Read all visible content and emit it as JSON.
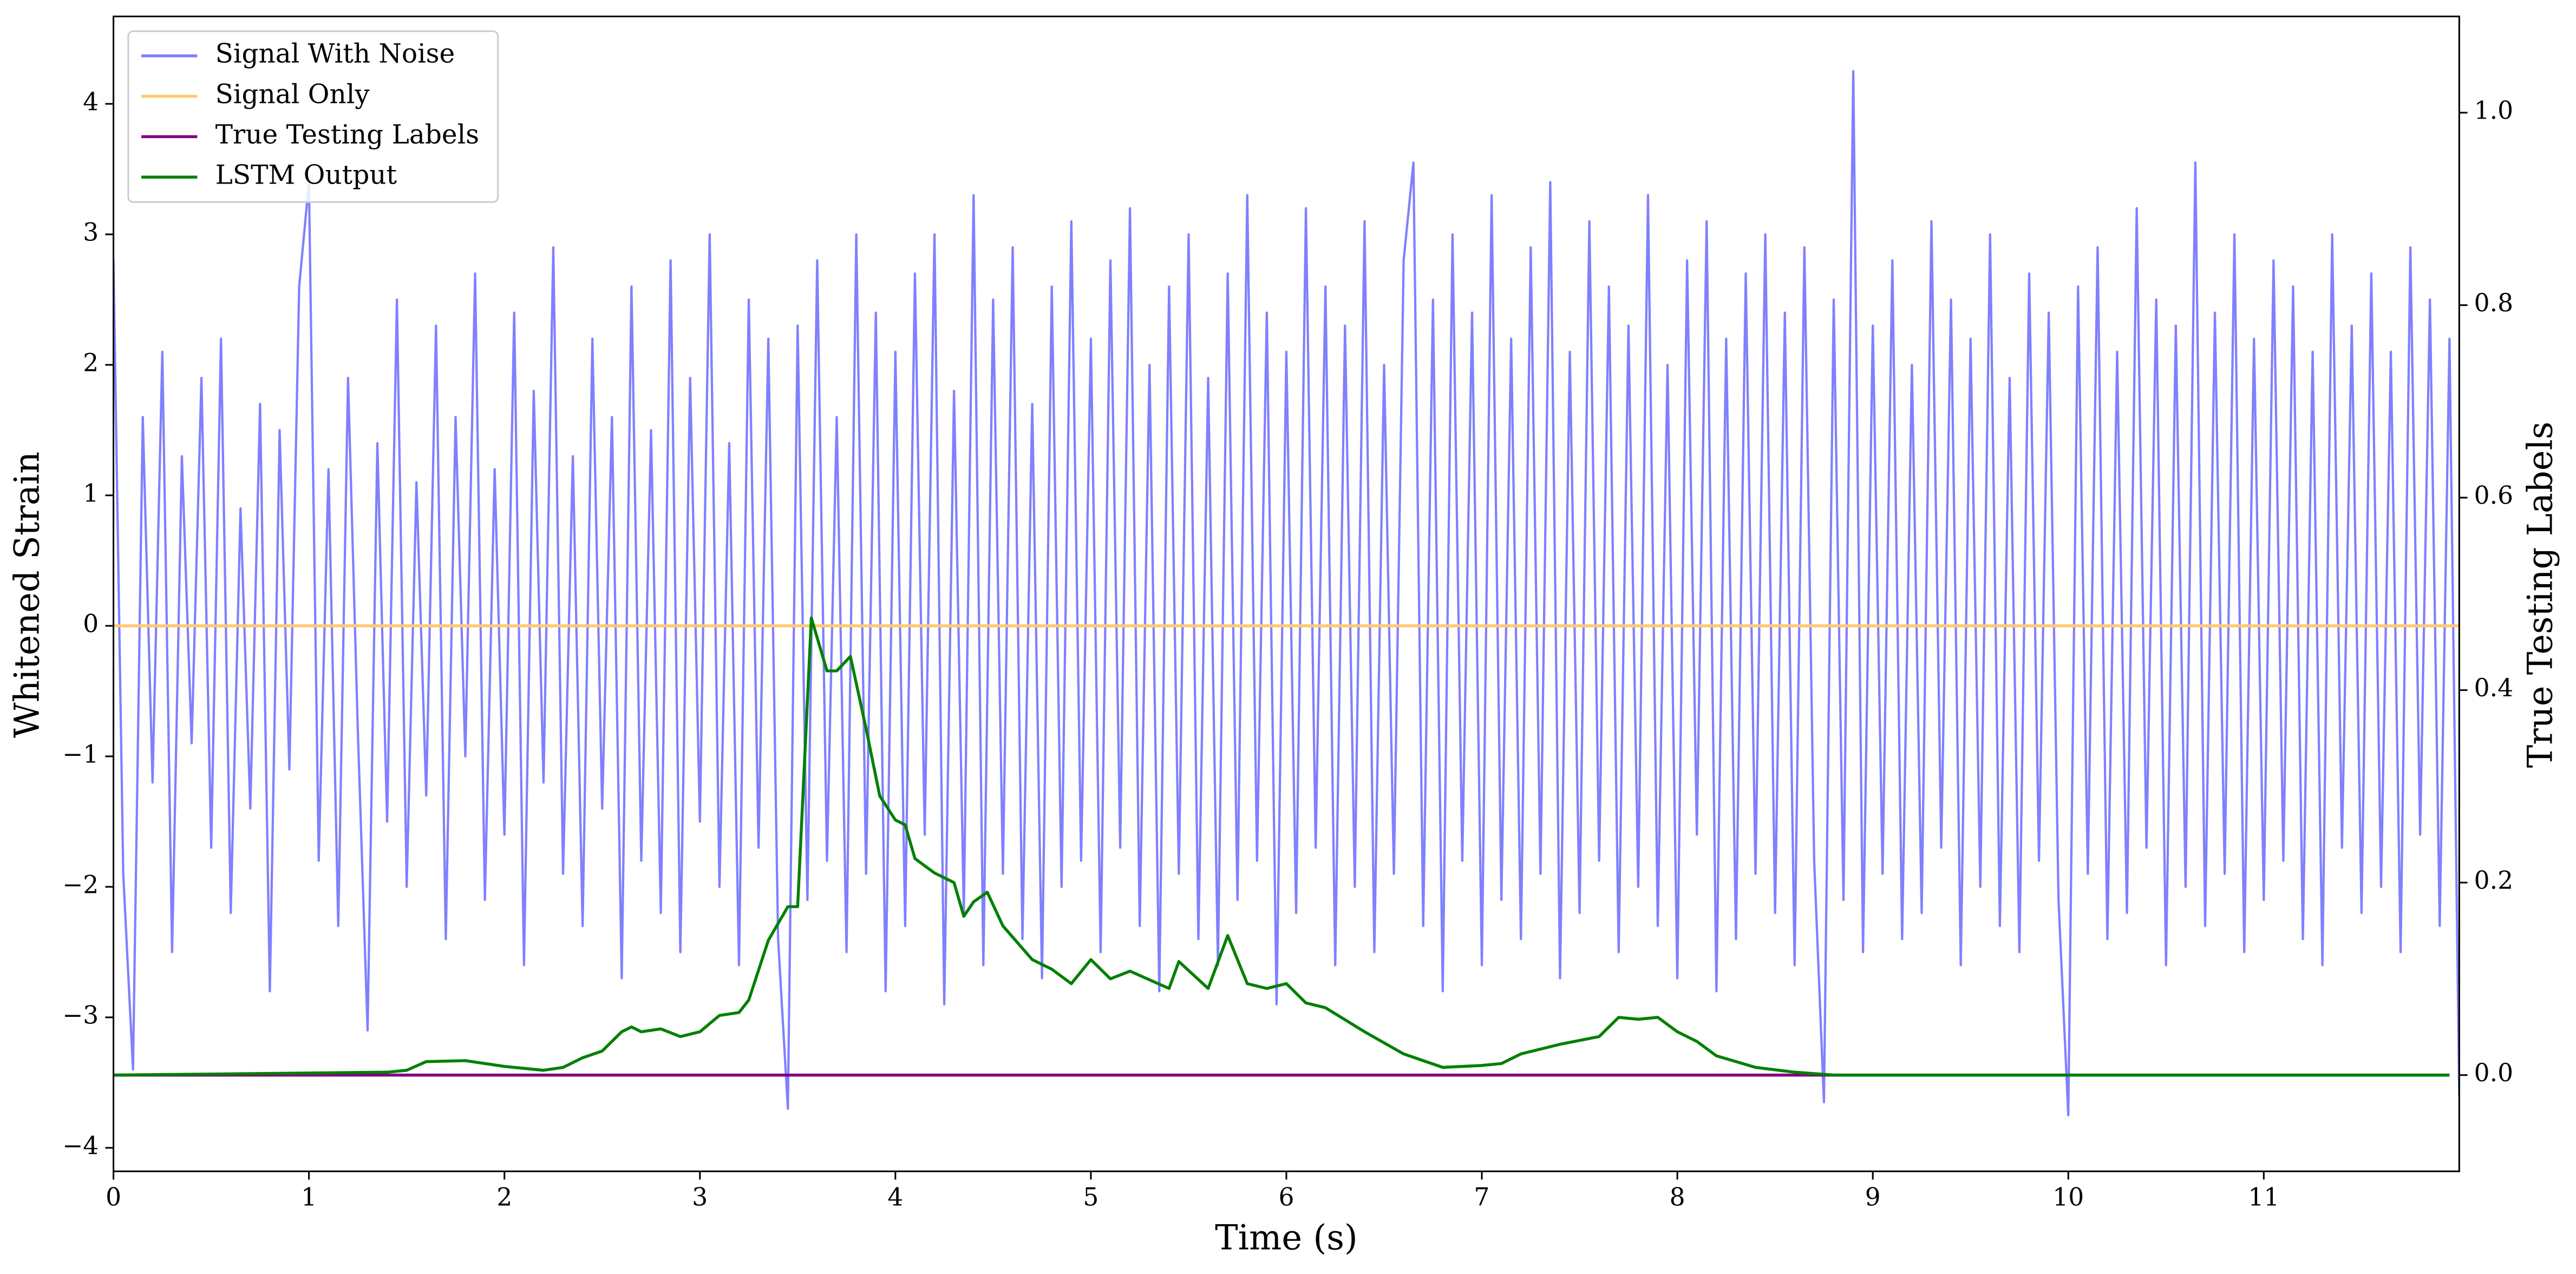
{
  "chart_data": {
    "type": "line",
    "xlabel": "Time (s)",
    "ylabel": "Whitened Strain",
    "y2label": "True Testing Labels",
    "xlim": [
      0,
      12
    ],
    "xticks": [
      0,
      1,
      2,
      3,
      4,
      5,
      6,
      7,
      8,
      9,
      10,
      11
    ],
    "ylim": [
      -4.18,
      4.67
    ],
    "yticks": [
      {
        "value": -4,
        "label": "−4"
      },
      {
        "value": -3,
        "label": "−3"
      },
      {
        "value": -2,
        "label": "−2"
      },
      {
        "value": -1,
        "label": "−1"
      },
      0,
      1,
      2,
      3,
      4
    ],
    "y2lim": [
      -0.1,
      1.1
    ],
    "y2ticks": [
      {
        "value": 0,
        "label": "0.0"
      },
      0.2,
      0.4,
      0.6,
      0.8,
      {
        "value": 1,
        "label": "1.0"
      }
    ],
    "legend": "upper left",
    "series": [
      {
        "name": "Signal With Noise",
        "color": "#8080ff",
        "x": [
          0,
          0.05,
          0.1,
          0.15,
          0.2,
          0.25,
          0.3,
          0.35,
          0.4,
          0.45,
          0.5,
          0.55,
          0.6,
          0.65,
          0.7,
          0.75,
          0.8,
          0.85,
          0.9,
          0.95,
          1,
          1.05,
          1.1,
          1.15,
          1.2,
          1.25,
          1.3,
          1.35,
          1.4,
          1.45,
          1.5,
          1.55,
          1.6,
          1.65,
          1.7,
          1.75,
          1.8,
          1.85,
          1.9,
          1.95,
          2,
          2.05,
          2.1,
          2.15,
          2.2,
          2.25,
          2.3,
          2.35,
          2.4,
          2.45,
          2.5,
          2.55,
          2.6,
          2.65,
          2.7,
          2.75,
          2.8,
          2.85,
          2.9,
          2.95,
          3,
          3.05,
          3.1,
          3.15,
          3.2,
          3.25,
          3.3,
          3.35,
          3.4,
          3.45,
          3.5,
          3.55,
          3.6,
          3.65,
          3.7,
          3.75,
          3.8,
          3.85,
          3.9,
          3.95,
          4,
          4.05,
          4.1,
          4.15,
          4.2,
          4.25,
          4.3,
          4.35,
          4.4,
          4.45,
          4.5,
          4.55,
          4.6,
          4.65,
          4.7,
          4.75,
          4.8,
          4.85,
          4.9,
          4.95,
          5,
          5.05,
          5.1,
          5.15,
          5.2,
          5.25,
          5.3,
          5.35,
          5.4,
          5.45,
          5.5,
          5.55,
          5.6,
          5.65,
          5.7,
          5.75,
          5.8,
          5.85,
          5.9,
          5.95,
          6,
          6.05,
          6.1,
          6.15,
          6.2,
          6.25,
          6.3,
          6.35,
          6.4,
          6.45,
          6.5,
          6.55,
          6.6,
          6.65,
          6.7,
          6.75,
          6.8,
          6.85,
          6.9,
          6.95,
          7,
          7.05,
          7.1,
          7.15,
          7.2,
          7.25,
          7.3,
          7.35,
          7.4,
          7.45,
          7.5,
          7.55,
          7.6,
          7.65,
          7.7,
          7.75,
          7.8,
          7.85,
          7.9,
          7.95,
          8,
          8.05,
          8.1,
          8.15,
          8.2,
          8.25,
          8.3,
          8.35,
          8.4,
          8.45,
          8.5,
          8.55,
          8.6,
          8.65,
          8.7,
          8.75,
          8.8,
          8.85,
          8.9,
          8.95,
          9,
          9.05,
          9.1,
          9.15,
          9.2,
          9.25,
          9.3,
          9.35,
          9.4,
          9.45,
          9.5,
          9.55,
          9.6,
          9.65,
          9.7,
          9.75,
          9.8,
          9.85,
          9.9,
          9.95,
          10,
          10.05,
          10.1,
          10.15,
          10.2,
          10.25,
          10.3,
          10.35,
          10.4,
          10.45,
          10.5,
          10.55,
          10.6,
          10.65,
          10.7,
          10.75,
          10.8,
          10.85,
          10.9,
          10.95,
          11,
          11.05,
          11.1,
          11.15,
          11.2,
          11.25,
          11.3,
          11.35,
          11.4,
          11.45,
          11.5,
          11.55,
          11.6,
          11.65,
          11.7,
          11.75,
          11.8,
          11.85,
          11.9,
          11.95,
          12
        ],
        "values": [
          2.8,
          -1.9,
          -3.4,
          1.6,
          -1.2,
          2.1,
          -2.5,
          1.3,
          -0.9,
          1.9,
          -1.7,
          2.2,
          -2.2,
          0.9,
          -1.4,
          1.7,
          -2.8,
          1.5,
          -1.1,
          2.6,
          3.4,
          -1.8,
          1.2,
          -2.3,
          1.9,
          -0.8,
          -3.1,
          1.4,
          -1.5,
          2.5,
          -2.0,
          1.1,
          -1.3,
          2.3,
          -2.4,
          1.6,
          -1.0,
          2.7,
          -2.1,
          1.2,
          -1.6,
          2.4,
          -2.6,
          1.8,
          -1.2,
          2.9,
          -1.9,
          1.3,
          -2.3,
          2.2,
          -1.4,
          1.6,
          -2.7,
          2.6,
          -1.8,
          1.5,
          -2.2,
          2.8,
          -2.5,
          1.9,
          -1.5,
          3.0,
          -2.0,
          1.4,
          -2.6,
          2.5,
          -1.7,
          2.2,
          -2.4,
          -3.7,
          2.3,
          -2.1,
          2.8,
          -1.8,
          1.6,
          -2.5,
          3.0,
          -1.9,
          2.4,
          -2.8,
          2.1,
          -2.3,
          2.7,
          -1.6,
          3.0,
          -2.9,
          1.8,
          -2.2,
          3.3,
          -2.6,
          2.5,
          -1.9,
          2.9,
          -2.4,
          1.7,
          -2.7,
          2.6,
          -2.0,
          3.1,
          -1.8,
          2.2,
          -2.5,
          2.8,
          -1.7,
          3.2,
          -2.3,
          2.0,
          -2.8,
          2.6,
          -1.9,
          3.0,
          -2.4,
          1.9,
          -2.6,
          2.7,
          -2.1,
          3.3,
          -1.8,
          2.4,
          -2.9,
          2.1,
          -2.2,
          3.2,
          -1.7,
          2.6,
          -2.6,
          2.3,
          -2.0,
          3.1,
          -2.5,
          2.0,
          -1.9,
          2.8,
          3.55,
          -2.3,
          2.5,
          -2.8,
          3.0,
          -1.8,
          2.4,
          -2.6,
          3.3,
          -2.1,
          2.2,
          -2.4,
          2.9,
          -1.9,
          3.4,
          -2.7,
          2.1,
          -2.2,
          3.1,
          -1.8,
          2.6,
          -2.5,
          2.3,
          -2.0,
          3.3,
          -2.3,
          2.0,
          -2.7,
          2.8,
          -1.6,
          3.1,
          -2.8,
          2.2,
          -2.4,
          2.7,
          -1.9,
          3.0,
          -2.2,
          2.4,
          -2.6,
          2.9,
          -1.8,
          -3.65,
          2.5,
          -2.1,
          4.25,
          -2.5,
          2.3,
          -1.9,
          2.8,
          -2.4,
          2.0,
          -2.2,
          3.1,
          -1.7,
          2.5,
          -2.6,
          2.2,
          -2.0,
          3.0,
          -2.3,
          1.9,
          -2.5,
          2.7,
          -1.8,
          2.4,
          -2.1,
          -3.75,
          2.6,
          -1.9,
          2.9,
          -2.4,
          2.1,
          -2.2,
          3.2,
          -1.7,
          2.5,
          -2.6,
          2.3,
          -2.0,
          3.55,
          -2.3,
          2.4,
          -1.9,
          3.0,
          -2.5,
          2.2,
          -2.1,
          2.8,
          -1.8,
          2.6,
          -2.4,
          2.1,
          -2.6,
          3.0,
          -1.7,
          2.3,
          -2.2,
          2.7,
          -2.0,
          2.1,
          -2.5,
          2.9,
          -1.6,
          2.5,
          -2.3,
          2.2,
          -3.6
        ]
      },
      {
        "name": "Signal Only",
        "color": "#ffc870",
        "x": [
          0,
          12
        ],
        "values": [
          0,
          0
        ]
      },
      {
        "name": "True Testing Labels",
        "color": "#800080",
        "axis": "y2",
        "x": [
          0,
          11.95
        ],
        "values": [
          0,
          0
        ]
      },
      {
        "name": "LSTM Output",
        "color": "#008000",
        "axis": "y2",
        "x": [
          0,
          1.4,
          1.5,
          1.6,
          1.8,
          2.0,
          2.2,
          2.3,
          2.4,
          2.5,
          2.6,
          2.65,
          2.7,
          2.8,
          2.9,
          3.0,
          3.1,
          3.2,
          3.25,
          3.35,
          3.45,
          3.5,
          3.57,
          3.65,
          3.7,
          3.77,
          3.85,
          3.92,
          4.0,
          4.05,
          4.1,
          4.2,
          4.3,
          4.35,
          4.4,
          4.47,
          4.55,
          4.7,
          4.8,
          4.9,
          5.0,
          5.1,
          5.2,
          5.4,
          5.45,
          5.6,
          5.7,
          5.8,
          5.9,
          6.0,
          6.1,
          6.2,
          6.4,
          6.6,
          6.8,
          7.0,
          7.1,
          7.2,
          7.4,
          7.6,
          7.7,
          7.8,
          7.9,
          8.0,
          8.1,
          8.2,
          8.4,
          8.6,
          8.8,
          11.95
        ],
        "values": [
          0,
          0.003,
          0.005,
          0.014,
          0.015,
          0.009,
          0.005,
          0.008,
          0.018,
          0.025,
          0.045,
          0.05,
          0.045,
          0.048,
          0.04,
          0.045,
          0.062,
          0.065,
          0.078,
          0.14,
          0.175,
          0.175,
          0.475,
          0.42,
          0.42,
          0.435,
          0.36,
          0.29,
          0.265,
          0.26,
          0.225,
          0.21,
          0.2,
          0.165,
          0.18,
          0.19,
          0.155,
          0.12,
          0.11,
          0.095,
          0.12,
          0.1,
          0.108,
          0.09,
          0.118,
          0.09,
          0.145,
          0.095,
          0.09,
          0.095,
          0.075,
          0.07,
          0.045,
          0.022,
          0.008,
          0.01,
          0.012,
          0.022,
          0.032,
          0.04,
          0.06,
          0.058,
          0.06,
          0.045,
          0.035,
          0.02,
          0.008,
          0.003,
          0,
          0
        ]
      }
    ]
  }
}
